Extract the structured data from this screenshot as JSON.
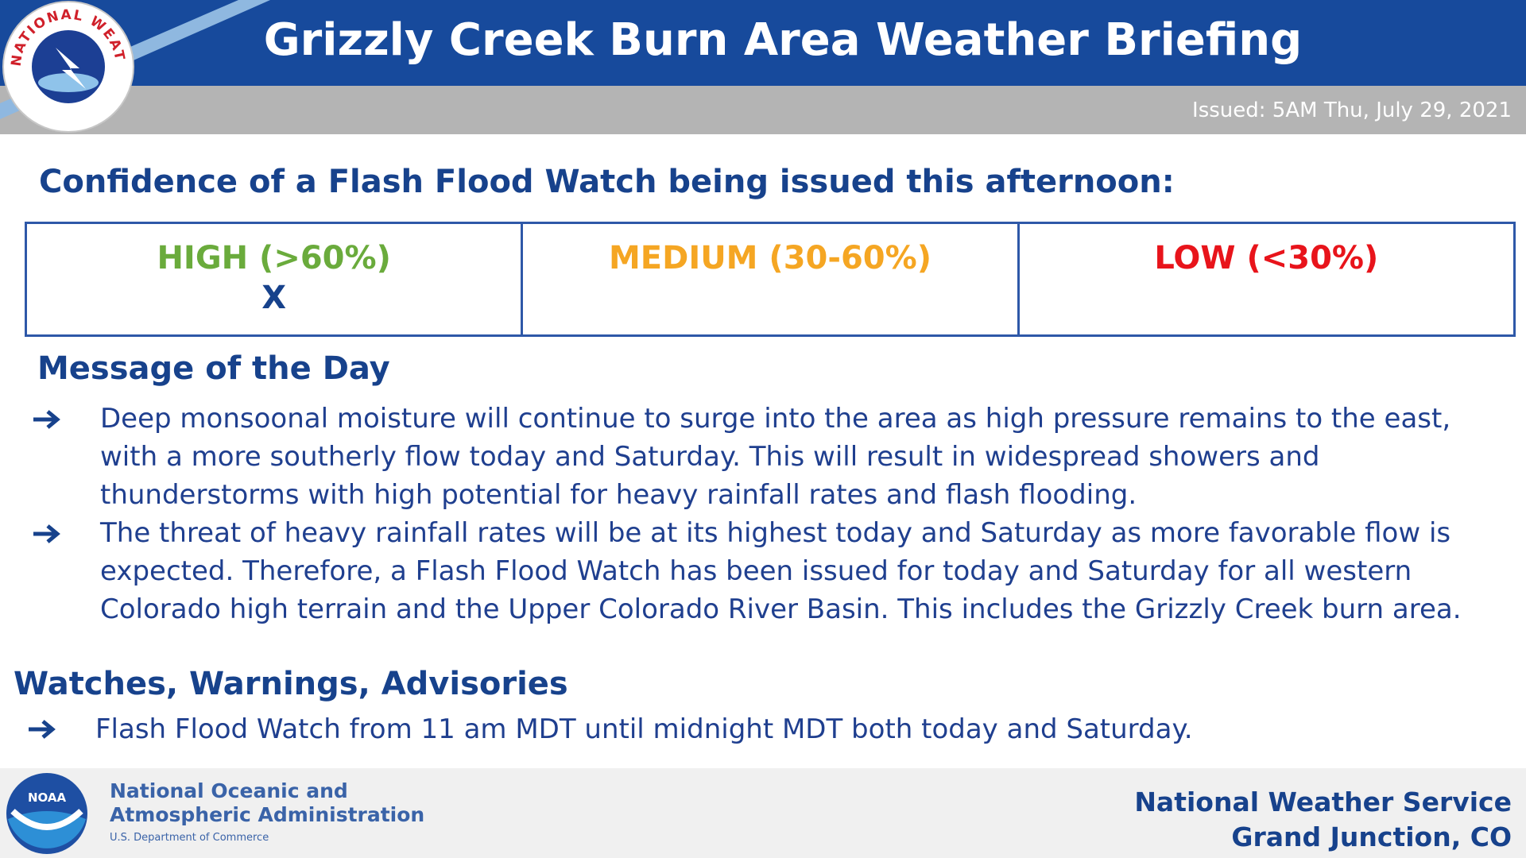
{
  "header": {
    "title": "Grizzly Creek Burn Area Weather Briefing",
    "issued": "Issued: 5AM Thu, July 29, 2021",
    "logo_text": "NATIONAL WEATHER SERVICE"
  },
  "confidence": {
    "heading": "Confidence of a Flash Flood Watch being issued this afternoon:",
    "cells": [
      {
        "label": "HIGH (>60%)",
        "mark": "X"
      },
      {
        "label": "MEDIUM (30-60%)"
      },
      {
        "label": "LOW (<30%)"
      }
    ]
  },
  "message": {
    "heading": "Message of the Day",
    "bullets": [
      "Deep monsoonal moisture will continue to surge into the area as high pressure remains to the east, with a more southerly flow today and Saturday. This will result in widespread showers and thunderstorms with high potential for heavy rainfall rates and flash flooding.",
      "The threat of heavy rainfall rates will be at its highest today and Saturday as more favorable flow is expected. Therefore, a Flash Flood Watch has been issued for today and Saturday for all western Colorado high terrain and the Upper Colorado River Basin. This includes the Grizzly Creek burn area."
    ]
  },
  "watches": {
    "heading": "Watches, Warnings, Advisories",
    "bullets": [
      "Flash Flood Watch from 11 am MDT until midnight MDT both today and Saturday."
    ]
  },
  "footer": {
    "noaa_logo": "NOAA",
    "noaa_lines": [
      "National Oceanic and",
      "Atmospheric Administration",
      "U.S. Department of Commerce"
    ],
    "nws_lines": [
      "National Weather Service",
      "Grand Junction, CO"
    ]
  }
}
